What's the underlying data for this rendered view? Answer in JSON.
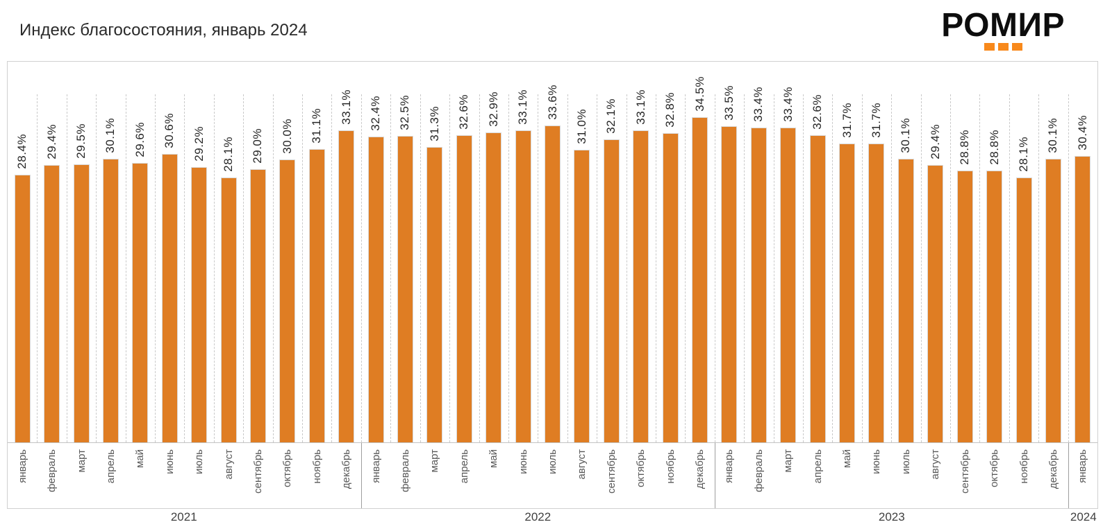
{
  "title": "Индекс благосостояния, январь 2024",
  "logo": {
    "text": "РОМИР",
    "accent_color": "#F8891B"
  },
  "chart_data": {
    "type": "bar",
    "title": "Индекс благосостояния, январь 2024",
    "value_suffix": "%",
    "bar_color": "#DF7D23",
    "bar_border_color": "#D9D9D9",
    "ylim": [
      0,
      40
    ],
    "grid": "vertical dashed between categories",
    "legend": "none",
    "label_rotation": "vertical bottom-to-top",
    "groups": [
      {
        "year": "2021",
        "months": [
          "январь",
          "февраль",
          "март",
          "апрель",
          "май",
          "июнь",
          "июль",
          "август",
          "сентябрь",
          "октябрь",
          "ноябрь",
          "декабрь"
        ],
        "values": [
          28.4,
          29.4,
          29.5,
          30.1,
          29.6,
          30.6,
          29.2,
          28.1,
          29.0,
          30.0,
          31.1,
          33.1
        ]
      },
      {
        "year": "2022",
        "months": [
          "январь",
          "февраль",
          "март",
          "апрель",
          "май",
          "июнь",
          "июль",
          "август",
          "сентябрь",
          "октябрь",
          "ноябрь",
          "декабрь"
        ],
        "values": [
          32.4,
          32.5,
          31.3,
          32.6,
          32.9,
          33.1,
          33.6,
          31.0,
          32.1,
          33.1,
          32.8,
          34.5
        ]
      },
      {
        "year": "2023",
        "months": [
          "январь",
          "февраль",
          "март",
          "апрель",
          "май",
          "июнь",
          "июль",
          "август",
          "сентябрь",
          "октябрь",
          "ноябрь",
          "декабрь"
        ],
        "values": [
          33.5,
          33.4,
          33.4,
          32.6,
          31.7,
          31.7,
          30.1,
          29.4,
          28.8,
          28.8,
          28.1,
          30.1
        ]
      },
      {
        "year": "2024",
        "months": [
          "январь"
        ],
        "values": [
          30.4
        ]
      }
    ]
  }
}
